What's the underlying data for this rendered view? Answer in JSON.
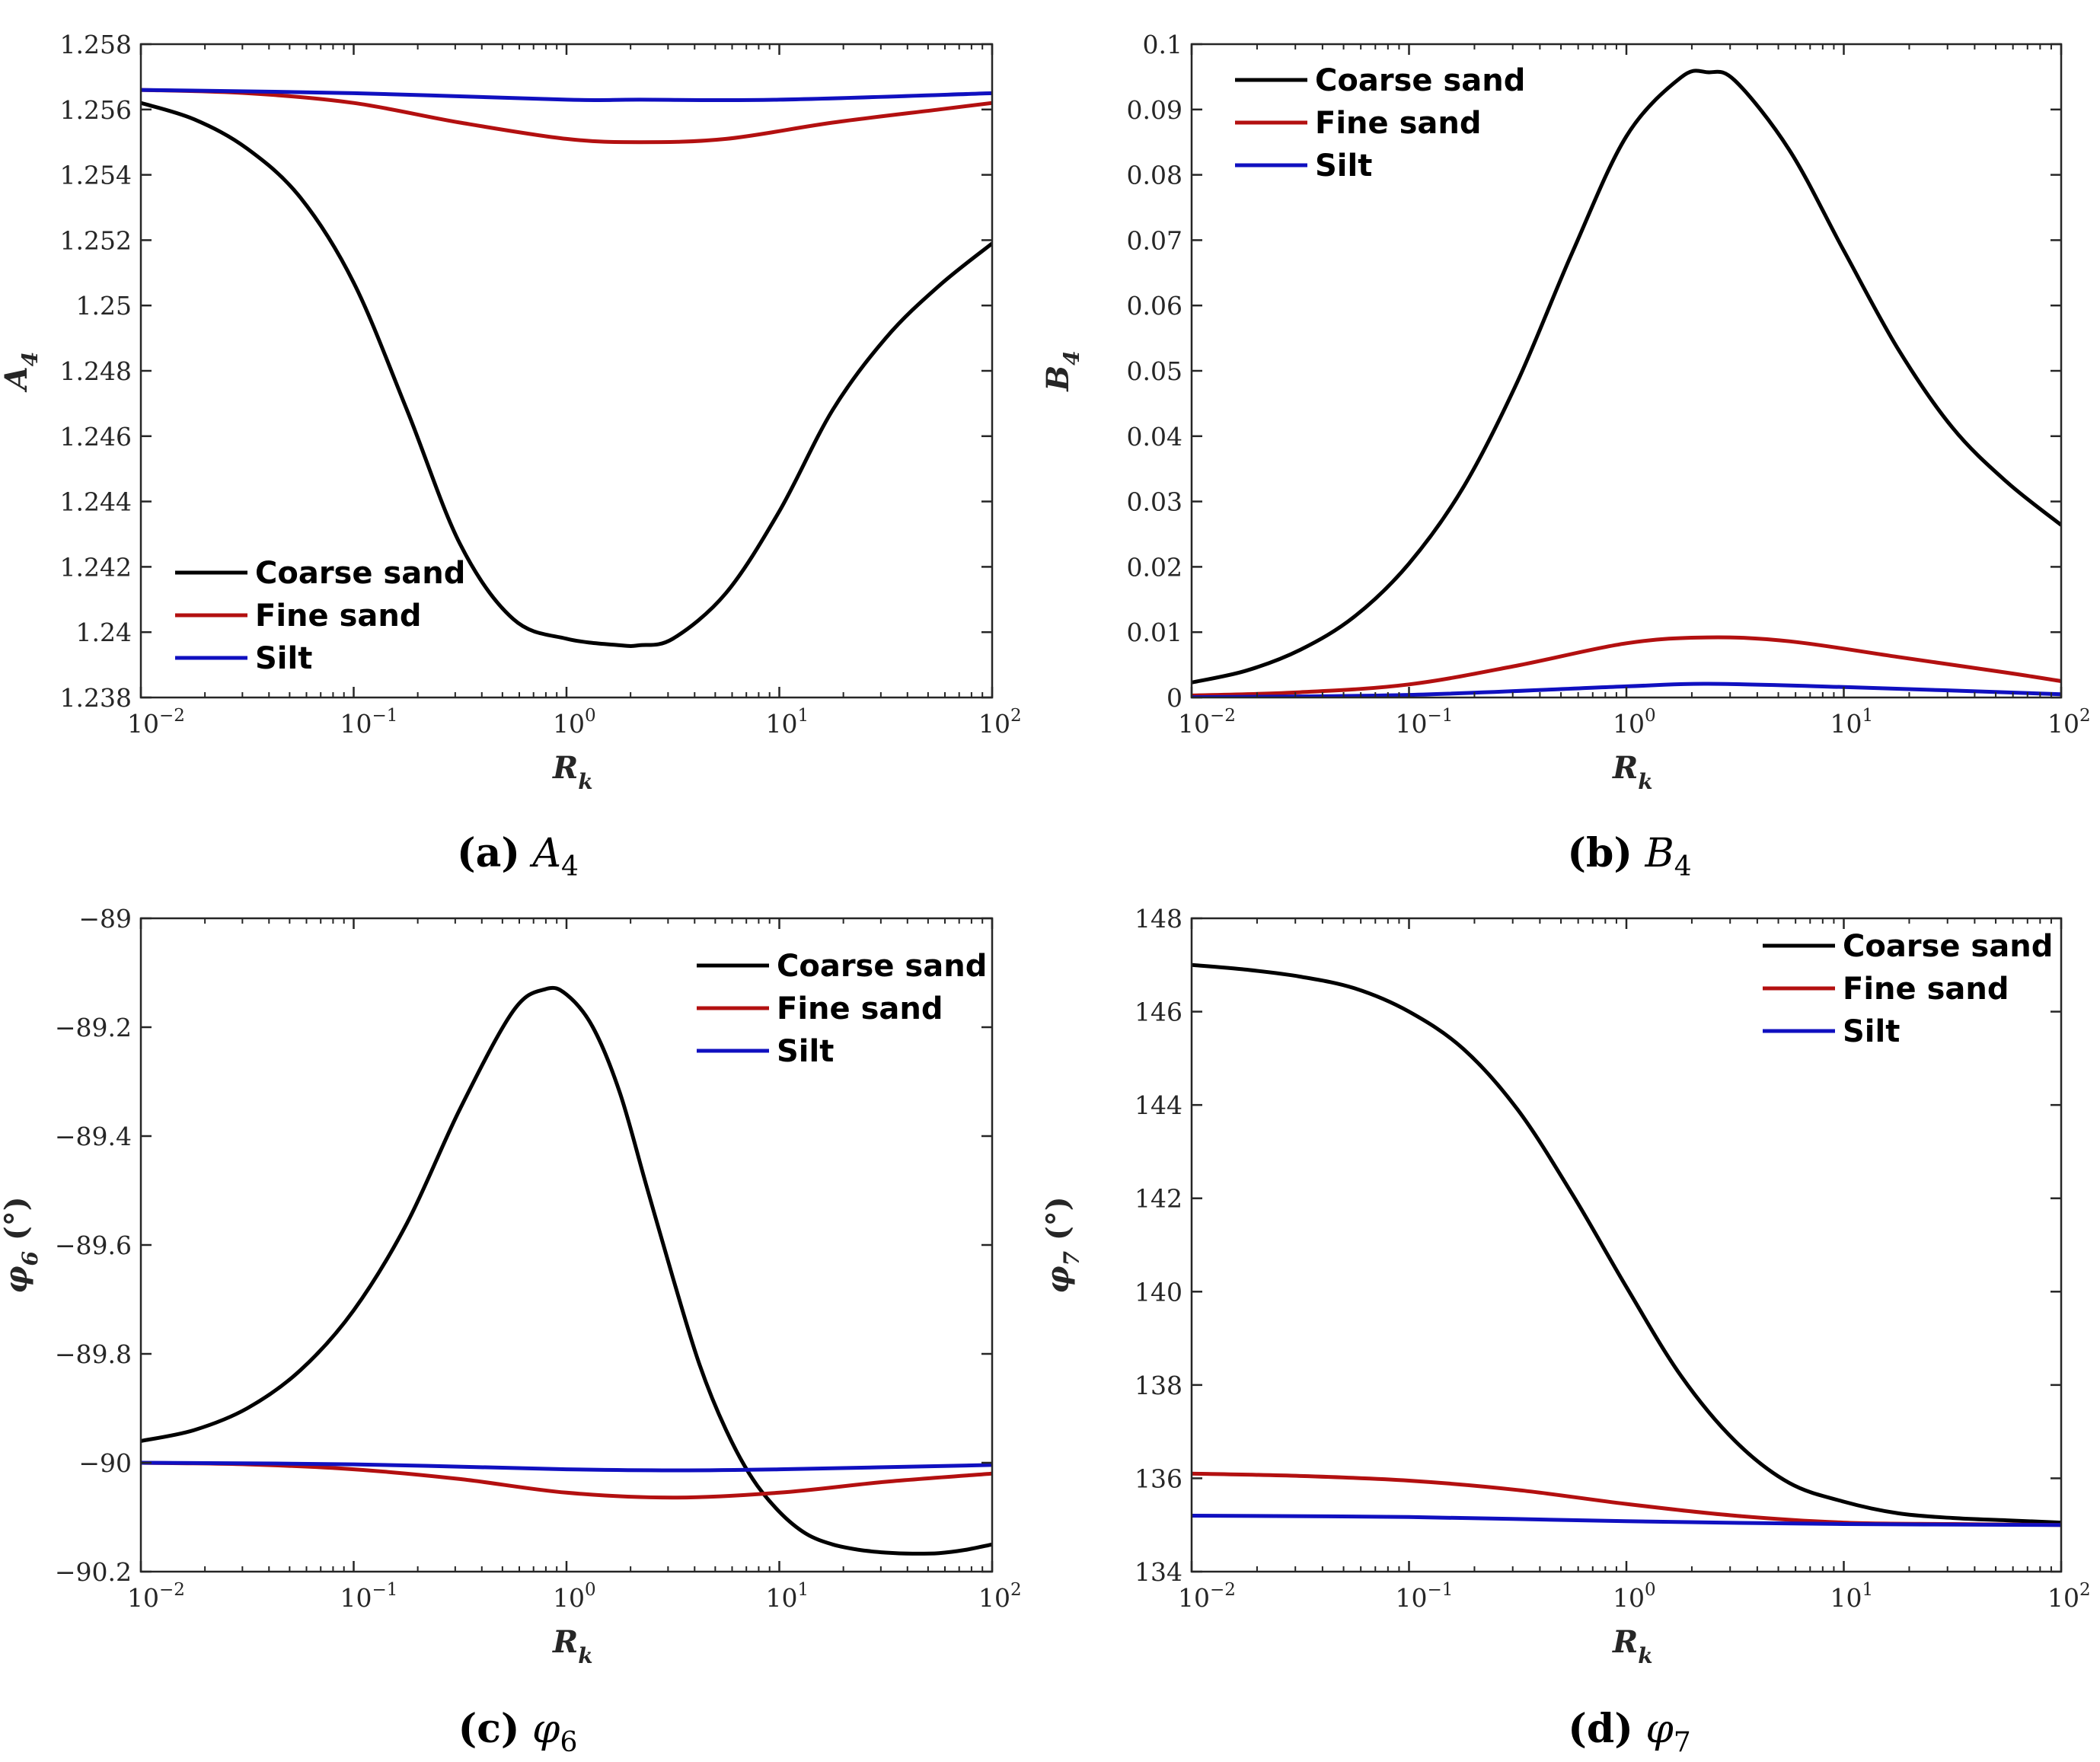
{
  "colors": {
    "coarse": "#000000",
    "fine": "#b31010",
    "silt": "#1010c0",
    "axis": "#262626"
  },
  "chart_data": [
    {
      "id": "a",
      "type": "line",
      "xscale": "log",
      "xlim": [
        0.01,
        100
      ],
      "ylim": [
        1.238,
        1.258
      ],
      "xlabel": "R",
      "xlabel_sub": "k",
      "ylabel": "A",
      "ylabel_sub": "4",
      "xticks": [
        {
          "base": "10",
          "exp": "−2"
        },
        {
          "base": "10",
          "exp": "−1"
        },
        {
          "base": "10",
          "exp": "0"
        },
        {
          "base": "10",
          "exp": "1"
        },
        {
          "base": "10",
          "exp": "2"
        }
      ],
      "yticks": [
        "1.238",
        "1.24",
        "1.242",
        "1.244",
        "1.246",
        "1.248",
        "1.25",
        "1.252",
        "1.254",
        "1.256",
        "1.258"
      ],
      "legend_position": "bottom-left",
      "caption": {
        "letter": "(a)",
        "sym": "A",
        "sub": "4"
      },
      "series": [
        {
          "name": "Coarse sand",
          "color_key": "coarse",
          "x": [
            0.01,
            0.0178,
            0.0316,
            0.0562,
            0.1,
            0.178,
            0.316,
            0.562,
            1,
            1.78,
            2.2,
            3.16,
            5.62,
            10,
            17.8,
            31.6,
            56.2,
            100
          ],
          "y": [
            1.2562,
            1.2557,
            1.2548,
            1.2533,
            1.2507,
            1.2468,
            1.2427,
            1.2404,
            1.2398,
            1.2396,
            1.2396,
            1.2398,
            1.2412,
            1.2437,
            1.2468,
            1.249,
            1.2506,
            1.2519
          ]
        },
        {
          "name": "Fine sand",
          "color_key": "fine",
          "x": [
            0.01,
            0.0316,
            0.1,
            0.316,
            1,
            2.2,
            5.62,
            17.8,
            56.2,
            100
          ],
          "y": [
            1.2566,
            1.2565,
            1.2562,
            1.2556,
            1.2551,
            1.255,
            1.2551,
            1.2556,
            1.256,
            1.2562
          ]
        },
        {
          "name": "Silt",
          "color_key": "silt",
          "x": [
            0.01,
            0.1,
            1,
            2.2,
            10,
            100
          ],
          "y": [
            1.2566,
            1.2565,
            1.2563,
            1.2563,
            1.2563,
            1.2565
          ]
        }
      ]
    },
    {
      "id": "b",
      "type": "line",
      "xscale": "log",
      "xlim": [
        0.01,
        100
      ],
      "ylim": [
        0,
        0.1
      ],
      "xlabel": "R",
      "xlabel_sub": "k",
      "ylabel": "B",
      "ylabel_sub": "4",
      "xticks": [
        {
          "base": "10",
          "exp": "−2"
        },
        {
          "base": "10",
          "exp": "−1"
        },
        {
          "base": "10",
          "exp": "0"
        },
        {
          "base": "10",
          "exp": "1"
        },
        {
          "base": "10",
          "exp": "2"
        }
      ],
      "yticks": [
        "0",
        "0.01",
        "0.02",
        "0.03",
        "0.04",
        "0.05",
        "0.06",
        "0.07",
        "0.08",
        "0.09",
        "0.1"
      ],
      "legend_position": "top-left",
      "caption": {
        "letter": "(b)",
        "sym": "B",
        "sub": "4"
      },
      "series": [
        {
          "name": "Coarse sand",
          "color_key": "coarse",
          "x": [
            0.01,
            0.0178,
            0.0316,
            0.0562,
            0.1,
            0.178,
            0.316,
            0.562,
            1,
            1.78,
            2.37,
            3.16,
            5.62,
            10,
            17.8,
            31.6,
            56.2,
            100
          ],
          "y": [
            0.0023,
            0.0041,
            0.0073,
            0.0124,
            0.0205,
            0.0322,
            0.0484,
            0.068,
            0.0859,
            0.0949,
            0.0957,
            0.0944,
            0.0838,
            0.0684,
            0.0533,
            0.0413,
            0.033,
            0.0264
          ]
        },
        {
          "name": "Fine sand",
          "color_key": "fine",
          "x": [
            0.01,
            0.0316,
            0.1,
            0.316,
            1,
            2.37,
            5.62,
            17.8,
            56.2,
            100
          ],
          "y": [
            0.0003,
            0.0008,
            0.002,
            0.0049,
            0.0083,
            0.0092,
            0.0086,
            0.0062,
            0.0038,
            0.0025
          ]
        },
        {
          "name": "Silt",
          "color_key": "silt",
          "x": [
            0.01,
            0.1,
            1,
            2.37,
            10,
            100
          ],
          "y": [
            5e-05,
            0.0004,
            0.0017,
            0.0021,
            0.0016,
            0.0005
          ]
        }
      ]
    },
    {
      "id": "c",
      "type": "line",
      "xscale": "log",
      "xlim": [
        0.01,
        100
      ],
      "ylim": [
        -90.2,
        -89
      ],
      "xlabel": "R",
      "xlabel_sub": "k",
      "ylabel": "φ",
      "ylabel_sub": "6",
      "ylabel_unit": " (°)",
      "xticks": [
        {
          "base": "10",
          "exp": "−2"
        },
        {
          "base": "10",
          "exp": "−1"
        },
        {
          "base": "10",
          "exp": "0"
        },
        {
          "base": "10",
          "exp": "1"
        },
        {
          "base": "10",
          "exp": "2"
        }
      ],
      "yticks": [
        "−90.2",
        "−90",
        "−89.8",
        "−89.6",
        "−89.4",
        "−89.2",
        "−89"
      ],
      "legend_position": "top-right",
      "caption": {
        "letter": "(c)",
        "sym": "φ",
        "sub": "6"
      },
      "series": [
        {
          "name": "Coarse sand",
          "color_key": "coarse",
          "x": [
            0.01,
            0.0178,
            0.0316,
            0.0562,
            0.1,
            0.178,
            0.316,
            0.562,
            0.8,
            1,
            1.33,
            1.78,
            2.37,
            3.16,
            4.22,
            5.62,
            7.5,
            10,
            13.3,
            17.8,
            23.7,
            31.6,
            42.2,
            56.2,
            75,
            100
          ],
          "y": [
            -89.96,
            -89.94,
            -89.9,
            -89.83,
            -89.72,
            -89.56,
            -89.35,
            -89.17,
            -89.13,
            -89.14,
            -89.2,
            -89.32,
            -89.49,
            -89.66,
            -89.82,
            -89.94,
            -90.03,
            -90.09,
            -90.13,
            -90.15,
            -90.16,
            -90.165,
            -90.167,
            -90.166,
            -90.16,
            -90.15
          ]
        },
        {
          "name": "Fine sand",
          "color_key": "fine",
          "x": [
            0.01,
            0.0316,
            0.1,
            0.316,
            1,
            3.16,
            10,
            31.6,
            100
          ],
          "y": [
            -90.0,
            -90.003,
            -90.012,
            -90.03,
            -90.055,
            -90.064,
            -90.055,
            -90.035,
            -90.02
          ]
        },
        {
          "name": "Silt",
          "color_key": "silt",
          "x": [
            0.01,
            0.1,
            1,
            3.16,
            10,
            100
          ],
          "y": [
            -90.0,
            -90.003,
            -90.012,
            -90.014,
            -90.012,
            -90.004
          ]
        }
      ]
    },
    {
      "id": "d",
      "type": "line",
      "xscale": "log",
      "xlim": [
        0.01,
        100
      ],
      "ylim": [
        134,
        148
      ],
      "xlabel": "R",
      "xlabel_sub": "k",
      "ylabel": "φ",
      "ylabel_sub": "7",
      "ylabel_unit": " (°)",
      "xticks": [
        {
          "base": "10",
          "exp": "−2"
        },
        {
          "base": "10",
          "exp": "−1"
        },
        {
          "base": "10",
          "exp": "0"
        },
        {
          "base": "10",
          "exp": "1"
        },
        {
          "base": "10",
          "exp": "2"
        }
      ],
      "yticks": [
        "134",
        "136",
        "138",
        "140",
        "142",
        "144",
        "146",
        "148"
      ],
      "legend_position": "top-right",
      "caption": {
        "letter": "(d)",
        "sym": "φ",
        "sub": "7"
      },
      "series": [
        {
          "name": "Coarse sand",
          "color_key": "coarse",
          "x": [
            0.01,
            0.0178,
            0.0316,
            0.0562,
            0.1,
            0.178,
            0.316,
            0.562,
            1,
            1.78,
            3.16,
            5.62,
            10,
            17.8,
            31.6,
            56.2,
            100
          ],
          "y": [
            147.0,
            146.9,
            146.75,
            146.5,
            146.0,
            145.2,
            143.9,
            142.1,
            140.1,
            138.2,
            136.8,
            135.9,
            135.5,
            135.25,
            135.15,
            135.1,
            135.05
          ]
        },
        {
          "name": "Fine sand",
          "color_key": "fine",
          "x": [
            0.01,
            0.0316,
            0.1,
            0.316,
            1,
            3.16,
            10,
            31.6,
            100
          ],
          "y": [
            136.1,
            136.05,
            135.95,
            135.75,
            135.45,
            135.2,
            135.05,
            135.02,
            135.0
          ]
        },
        {
          "name": "Silt",
          "color_key": "silt",
          "x": [
            0.01,
            0.1,
            1,
            10,
            100
          ],
          "y": [
            135.2,
            135.17,
            135.08,
            135.02,
            135.0
          ]
        }
      ]
    }
  ]
}
